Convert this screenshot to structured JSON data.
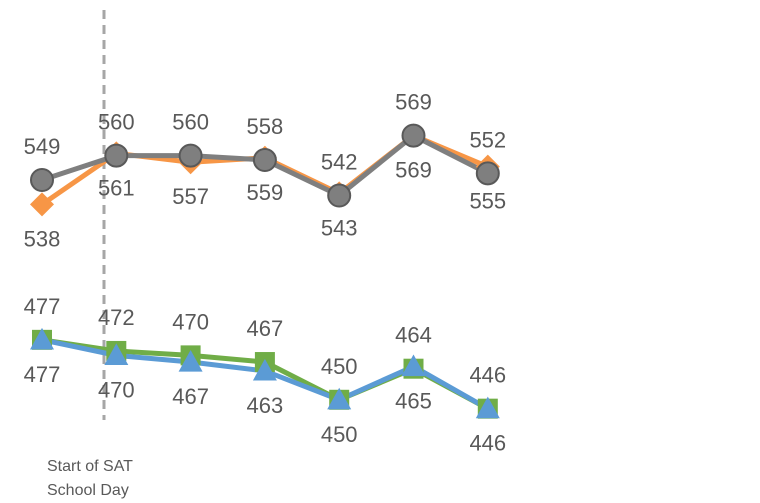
{
  "chart_data": {
    "type": "line",
    "categories": [
      "",
      "",
      "",
      "",
      "",
      "",
      ""
    ],
    "ylim": [
      420,
      600
    ],
    "grid": false,
    "legend": "none",
    "annotation": {
      "lines": [
        "Start of SAT",
        "School Day"
      ],
      "after_category_index": 0,
      "line_style": "dashed",
      "color": "#a6a6a6"
    },
    "series": [
      {
        "color": "#f79646",
        "marker": "diamond",
        "values": [
          538,
          561,
          557,
          559,
          543,
          569,
          555
        ],
        "label_position": "below"
      },
      {
        "color": "#7f7f7f",
        "marker": "circle",
        "values": [
          549,
          560,
          560,
          558,
          542,
          569,
          552
        ],
        "label_position": "above"
      },
      {
        "color": "#70ad47",
        "marker": "square",
        "values": [
          477,
          472,
          470,
          467,
          450,
          464,
          446
        ],
        "label_position": "above"
      },
      {
        "color": "#5b9bd5",
        "marker": "triangle",
        "values": [
          477,
          470,
          467,
          463,
          450,
          465,
          446
        ],
        "label_position": "below"
      }
    ]
  }
}
